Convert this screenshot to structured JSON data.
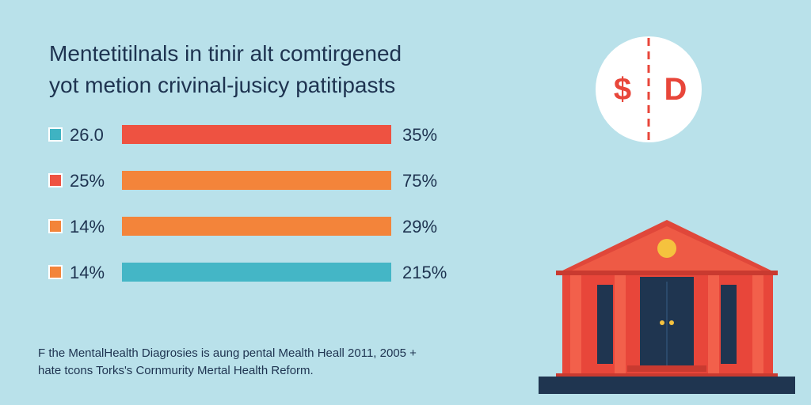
{
  "title": {
    "line1": "Mentetitilnals in tinir alt comtirgened",
    "line2": "yot metion crivinal-jusicy patitipasts"
  },
  "chart_data": {
    "type": "bar",
    "title": "Mentetitilnals in tinir alt comtirgened yot metion crivinal-jusicy patitipasts",
    "rows": [
      {
        "left_label": "26.0",
        "right_label": "35%",
        "marker_color": "#3fb3c2",
        "bar_color": "#ee5241"
      },
      {
        "left_label": "25%",
        "right_label": "75%",
        "marker_color": "#ee5241",
        "bar_color": "#f3843a"
      },
      {
        "left_label": "14%",
        "right_label": "29%",
        "marker_color": "#f3843a",
        "bar_color": "#f3843a"
      },
      {
        "left_label": "14%",
        "right_label": "215%",
        "marker_color": "#f3843a",
        "bar_color": "#44b6c6"
      }
    ]
  },
  "footnote": {
    "line1": "F the MentalHealth Diagrosies is aung pental Mealth Heall 2011, 2005 +",
    "line2": "hate tcons Torks's Cornmurity Mertal Health Reform."
  },
  "icons": {
    "coin": {
      "name": "dollar-coin-icon",
      "left_glyph": "$",
      "right_glyph": "D",
      "glyph_color": "#e8463a",
      "fill": "#ffffff",
      "divider_color": "#e8463a"
    },
    "bank": {
      "name": "bank-building-icon",
      "wall_color": "#e8463a",
      "roof_color": "#e0473a",
      "window_color": "#1f3550",
      "sun_color": "#f5c23e"
    }
  }
}
